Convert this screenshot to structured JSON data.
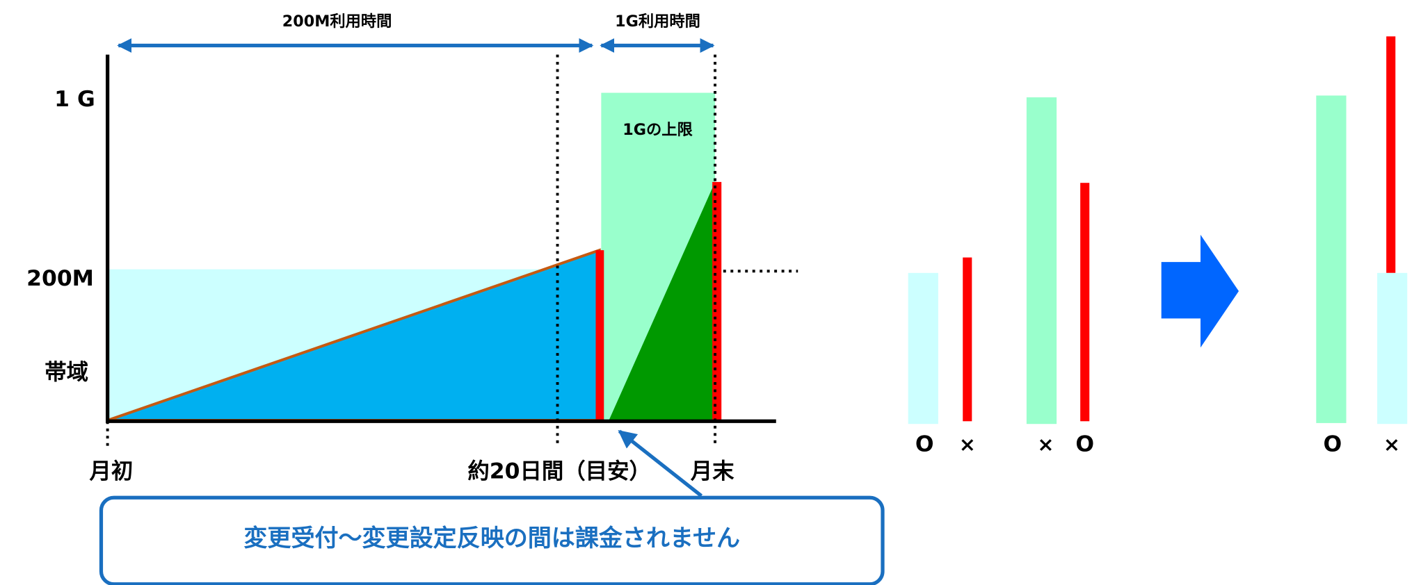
{
  "diagram": {
    "top_labels": [
      "200M利用時間",
      "1G利用時間"
    ],
    "y_labels": [
      "1 G",
      "200M",
      "帯域"
    ],
    "x_labels": [
      "月初",
      "約20日間（目安）",
      "月末"
    ],
    "limit_label": "1Gの上限",
    "callout": "変更受付～変更設定反映の間は課金されません",
    "symbols": [
      "O",
      "×",
      "×",
      "O",
      "O",
      "×"
    ]
  }
}
